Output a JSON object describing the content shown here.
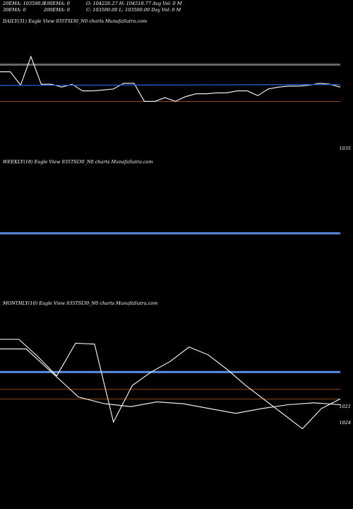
{
  "header": {
    "ema20": "20EMA: 103590.9",
    "ema100": "100EMA: 0",
    "ohlc1": "O: 104226.27 H: 104518.77 Avg Vol: 0  M",
    "ema30": "30EMA: 0",
    "ema200": "200EMA: 0",
    "ohlc2": "C: 103500.00 L: 103500.00 Day Vol: 0  M"
  },
  "colors": {
    "background": "#000000",
    "price_line": "#ffffff",
    "ema_line": "#1f5fd6",
    "ema_line_thick": "#5b8ee6",
    "grey_ref": "#9a9a9a",
    "brown_ref": "#8a4a1c"
  },
  "chart_data": [
    {
      "type": "line",
      "title": "DAILY(31) Eagle  View  935TSI30_N0  charts MunafaSutra.com",
      "right_label": "1035",
      "series": [
        {
          "values": [
            0.16,
            0.16,
            0.3,
            0.0,
            0.29,
            0.29,
            0.32,
            0.29,
            0.36,
            0.36,
            0.35,
            0.34,
            0.28,
            0.28,
            0.47,
            0.47,
            0.43,
            0.47,
            0.42,
            0.39,
            0.39,
            0.38,
            0.38,
            0.36,
            0.36,
            0.41,
            0.34,
            0.32,
            0.31,
            0.31,
            0.3,
            0.28,
            0.29,
            0.32
          ]
        },
        {
          "values": [
            0.302,
            0.301,
            0.3,
            0.299,
            0.298,
            0.297,
            0.296,
            0.295,
            0.294,
            0.293
          ]
        }
      ],
      "ref_lines": [
        {
          "kind": "grey",
          "y": 0.08
        },
        {
          "kind": "grey",
          "y": 0.09
        },
        {
          "kind": "brown",
          "y": 0.47
        }
      ]
    },
    {
      "type": "line",
      "title": "WEEKLY(18) Eagle  View  935TSI30_N0  charts MunafaSutra.com",
      "series": [],
      "ema_level": 0.5
    },
    {
      "type": "line",
      "title": "MONTHLY(10) Eagle  View  935TSI30_N0  charts MunafaSutra.com",
      "right_labels": [
        "1021",
        "1024"
      ],
      "series": [
        {
          "values": [
            0.1,
            0.1,
            0.35,
            0.6,
            0.67,
            0.7,
            0.65,
            0.67,
            0.72,
            0.77,
            0.72,
            0.68,
            0.66,
            0.68
          ]
        },
        {
          "values": [
            0.0,
            0.0,
            0.18,
            0.38,
            0.04,
            0.05,
            0.86,
            0.48,
            0.34,
            0.23,
            0.08,
            0.16,
            0.31,
            0.48,
            0.63,
            0.78,
            0.93,
            0.72,
            0.62
          ]
        }
      ],
      "ema_level": 0.34,
      "ref_lines": [
        {
          "kind": "brown",
          "y": 0.52
        },
        {
          "kind": "brown",
          "y": 0.62
        }
      ]
    }
  ]
}
